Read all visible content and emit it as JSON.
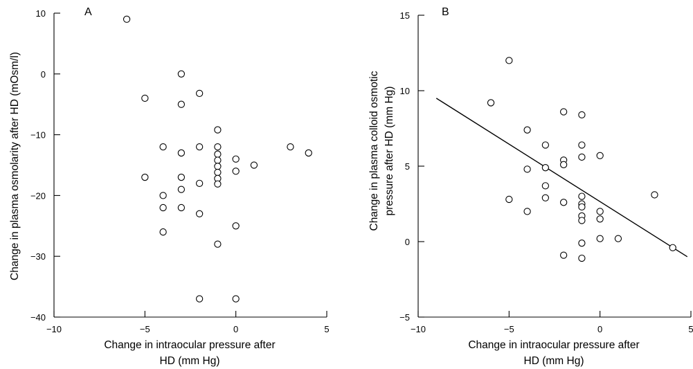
{
  "chart_data": [
    {
      "type": "scatter",
      "panel_label": "A",
      "title": "",
      "xlabel_lines": [
        "Change in intraocular pressure after",
        "HD (mm Hg)"
      ],
      "ylabel": "Change in plasma osmolarity after HD (mOsm/l)",
      "xlim": [
        -10,
        5
      ],
      "ylim": [
        -40,
        10
      ],
      "xticks": [
        -10,
        -5,
        0,
        5
      ],
      "yticks": [
        -40,
        -30,
        -20,
        -10,
        0,
        10
      ],
      "xtick_labels": [
        "−10",
        "−5",
        "0",
        "5"
      ],
      "ytick_labels": [
        "−40",
        "−30",
        "−20",
        "−10",
        "0",
        "10"
      ],
      "grid": false,
      "points": [
        {
          "x": -6,
          "y": 9
        },
        {
          "x": -5,
          "y": -4
        },
        {
          "x": -5,
          "y": -17
        },
        {
          "x": -4,
          "y": -12
        },
        {
          "x": -4,
          "y": -20
        },
        {
          "x": -4,
          "y": -22
        },
        {
          "x": -4,
          "y": -26
        },
        {
          "x": -3,
          "y": 0
        },
        {
          "x": -3,
          "y": -5
        },
        {
          "x": -3,
          "y": -13
        },
        {
          "x": -3,
          "y": -17
        },
        {
          "x": -3,
          "y": -19
        },
        {
          "x": -3,
          "y": -22
        },
        {
          "x": -2,
          "y": -3.2
        },
        {
          "x": -2,
          "y": -12
        },
        {
          "x": -2,
          "y": -18
        },
        {
          "x": -2,
          "y": -23
        },
        {
          "x": -2,
          "y": -37
        },
        {
          "x": -1,
          "y": -9.2
        },
        {
          "x": -1,
          "y": -12
        },
        {
          "x": -1,
          "y": -13.2
        },
        {
          "x": -1,
          "y": -14.2
        },
        {
          "x": -1,
          "y": -15.2
        },
        {
          "x": -1,
          "y": -16.2
        },
        {
          "x": -1,
          "y": -17.2
        },
        {
          "x": -1,
          "y": -18.1
        },
        {
          "x": -1,
          "y": -28
        },
        {
          "x": 0,
          "y": -14
        },
        {
          "x": 0,
          "y": -16
        },
        {
          "x": 0,
          "y": -25
        },
        {
          "x": 0,
          "y": -37
        },
        {
          "x": 1,
          "y": -15
        },
        {
          "x": 3,
          "y": -12
        },
        {
          "x": 4,
          "y": -13
        }
      ]
    },
    {
      "type": "scatter",
      "panel_label": "B",
      "title": "",
      "xlabel_lines": [
        "Change in intraocular pressure after",
        "HD (mm Hg)"
      ],
      "ylabel_lines": [
        "Change in plasma colloid osmotic",
        "pressure after HD (mm Hg)"
      ],
      "xlim": [
        -10,
        5
      ],
      "ylim": [
        -5,
        15
      ],
      "xticks": [
        -10,
        -5,
        0,
        5
      ],
      "yticks": [
        -5,
        0,
        5,
        10,
        15
      ],
      "xtick_labels": [
        "−10",
        "−5",
        "0",
        "5"
      ],
      "ytick_labels": [
        "−5",
        "0",
        "5",
        "10",
        "15"
      ],
      "grid": false,
      "regression_line": {
        "x1": -9,
        "y1": 9.5,
        "x2": 4.8,
        "y2": -1.0
      },
      "points": [
        {
          "x": -6,
          "y": 9.2
        },
        {
          "x": -5,
          "y": 12
        },
        {
          "x": -5,
          "y": 2.8
        },
        {
          "x": -4,
          "y": 7.4
        },
        {
          "x": -4,
          "y": 4.8
        },
        {
          "x": -4,
          "y": 2
        },
        {
          "x": -3,
          "y": 6.4
        },
        {
          "x": -3,
          "y": 4.9
        },
        {
          "x": -3,
          "y": 3.7
        },
        {
          "x": -3,
          "y": 2.9
        },
        {
          "x": -2,
          "y": 8.6
        },
        {
          "x": -2,
          "y": 5.4
        },
        {
          "x": -2,
          "y": 5.1
        },
        {
          "x": -2,
          "y": 2.6
        },
        {
          "x": -2,
          "y": -0.9
        },
        {
          "x": -1,
          "y": 8.4
        },
        {
          "x": -1,
          "y": 6.4
        },
        {
          "x": -1,
          "y": 5.6
        },
        {
          "x": -1,
          "y": 3
        },
        {
          "x": -1,
          "y": 2.5
        },
        {
          "x": -1,
          "y": 2.3
        },
        {
          "x": -1,
          "y": 1.7
        },
        {
          "x": -1,
          "y": 1.4
        },
        {
          "x": -1,
          "y": -0.1
        },
        {
          "x": -1,
          "y": -1.1
        },
        {
          "x": 0,
          "y": 5.7
        },
        {
          "x": 0,
          "y": 2
        },
        {
          "x": 0,
          "y": 1.5
        },
        {
          "x": 0,
          "y": 0.2
        },
        {
          "x": 1,
          "y": 0.2
        },
        {
          "x": 3,
          "y": 3.1
        },
        {
          "x": 4,
          "y": -0.4
        }
      ]
    }
  ]
}
